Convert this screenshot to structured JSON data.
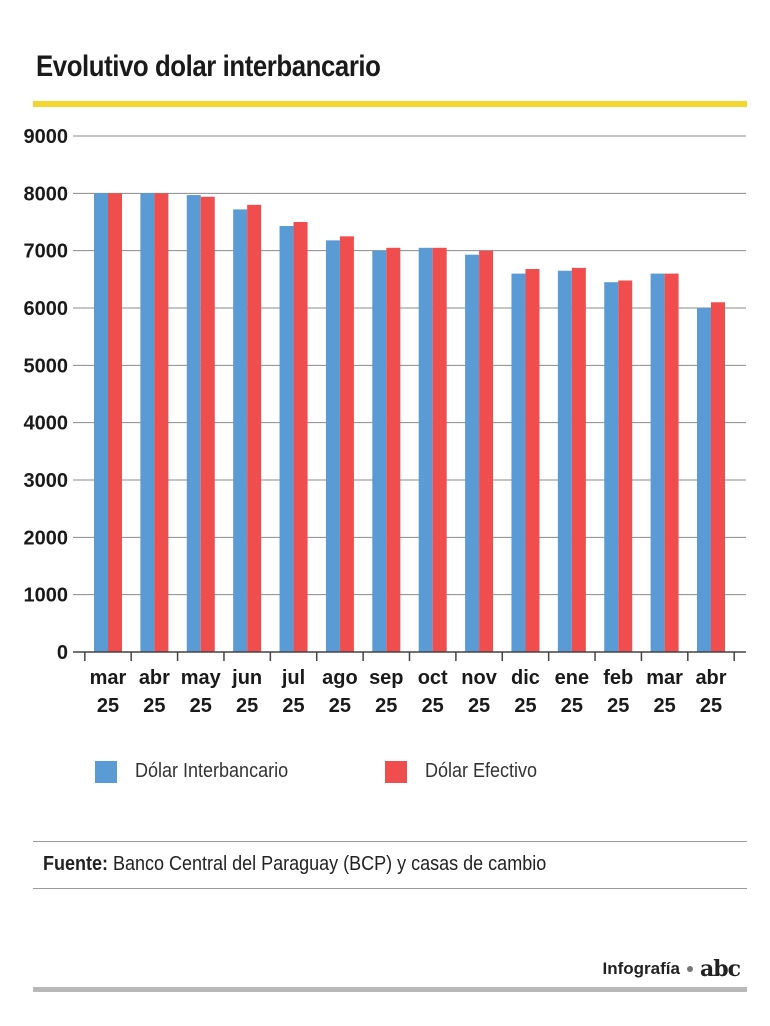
{
  "title": "Evolutivo dolar interbancario",
  "chart_data": {
    "type": "bar",
    "categories": [
      "mar 25",
      "abr 25",
      "may 25",
      "jun 25",
      "jul 25",
      "ago 25",
      "sep 25",
      "oct 25",
      "nov 25",
      "dic 25",
      "ene 25",
      "feb 25",
      "mar 25",
      "abr 25"
    ],
    "category_lines": [
      [
        "mar",
        "25"
      ],
      [
        "abr",
        "25"
      ],
      [
        "may",
        "25"
      ],
      [
        "jun",
        "25"
      ],
      [
        "jul",
        "25"
      ],
      [
        "ago",
        "25"
      ],
      [
        "sep",
        "25"
      ],
      [
        "oct",
        "25"
      ],
      [
        "nov",
        "25"
      ],
      [
        "dic",
        "25"
      ],
      [
        "ene",
        "25"
      ],
      [
        "feb",
        "25"
      ],
      [
        "mar",
        "25"
      ],
      [
        "abr",
        "25"
      ]
    ],
    "series": [
      {
        "name": "Dólar Interbancario",
        "color": "#5b9bd5",
        "values": [
          8000,
          8000,
          7970,
          7720,
          7430,
          7180,
          7000,
          7050,
          6930,
          6600,
          6650,
          6450,
          6600,
          6000
        ]
      },
      {
        "name": "Dólar Efectivo",
        "color": "#f04e4e",
        "values": [
          8000,
          8000,
          7940,
          7800,
          7500,
          7250,
          7050,
          7050,
          7000,
          6680,
          6700,
          6480,
          6600,
          6100
        ]
      }
    ],
    "yticks": [
      0,
      1000,
      2000,
      3000,
      4000,
      5000,
      6000,
      7000,
      8000,
      9000
    ],
    "ylim": [
      0,
      9000
    ],
    "grid": true,
    "legend": "bottom"
  },
  "source": {
    "label": "Fuente:",
    "text": " Banco Central del Paraguay (BCP) y casas de cambio"
  },
  "credit": {
    "label": "Infografía",
    "logo": "abc"
  }
}
